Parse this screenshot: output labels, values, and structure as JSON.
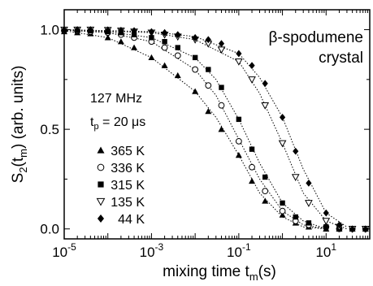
{
  "chart_data": {
    "type": "scatter",
    "xscale": "log",
    "xlim": [
      1e-05,
      100
    ],
    "ylim": [
      -0.05,
      1.1
    ],
    "xlabel": {
      "main": "mixing time t",
      "sub": "m",
      "tail": "(s)"
    },
    "ylabel": {
      "main": "S",
      "sub1": "2",
      "mid": "(t",
      "sub2": "m",
      "tail": ") (arb. units)"
    },
    "x_ticks": [
      {
        "value": 1e-05,
        "base": "10",
        "exp": "-5"
      },
      {
        "value": 0.001,
        "base": "10",
        "exp": "-3"
      },
      {
        "value": 0.1,
        "base": "10",
        "exp": "-1"
      },
      {
        "value": 10,
        "base": "10",
        "exp": "1"
      }
    ],
    "y_ticks": [
      {
        "value": 0.0,
        "label": "0.0"
      },
      {
        "value": 0.5,
        "label": "0.5"
      },
      {
        "value": 1.0,
        "label": "1.0"
      }
    ],
    "annotations": {
      "title_line1": "β-spodumene",
      "title_line2": "crystal",
      "freq": "127 MHz",
      "tp_main": "t",
      "tp_sub": "p",
      "tp_value": " = 20 μs"
    },
    "series": [
      {
        "name": "365 K",
        "marker": "triangle-up",
        "x": [
          1e-05,
          2e-05,
          4e-05,
          0.0001,
          0.0002,
          0.0004,
          0.001,
          0.002,
          0.004,
          0.01,
          0.02,
          0.04,
          0.1,
          0.2,
          0.4,
          1,
          2,
          4,
          10,
          20,
          40,
          80
        ],
        "y": [
          0.99,
          0.985,
          0.98,
          0.96,
          0.94,
          0.91,
          0.86,
          0.82,
          0.77,
          0.69,
          0.59,
          0.5,
          0.37,
          0.24,
          0.14,
          0.07,
          0.03,
          0.01,
          0.0,
          0.0,
          0.0,
          0.0
        ],
        "fit": [
          [
            1e-05,
            0.995
          ],
          [
            0.0001,
            0.96
          ],
          [
            0.001,
            0.86
          ],
          [
            0.01,
            0.69
          ],
          [
            0.03,
            0.56
          ],
          [
            0.1,
            0.37
          ],
          [
            0.3,
            0.18
          ],
          [
            1,
            0.06
          ],
          [
            3,
            0.01
          ],
          [
            10,
            0.0
          ]
        ]
      },
      {
        "name": "336 K",
        "marker": "circle-open",
        "x": [
          1e-05,
          2e-05,
          4e-05,
          0.0001,
          0.0002,
          0.0004,
          0.001,
          0.002,
          0.004,
          0.01,
          0.02,
          0.04,
          0.1,
          0.2,
          0.4,
          1,
          2,
          4,
          10,
          20,
          40,
          80
        ],
        "y": [
          0.995,
          0.993,
          0.99,
          0.985,
          0.975,
          0.96,
          0.94,
          0.91,
          0.87,
          0.8,
          0.72,
          0.62,
          0.44,
          0.31,
          0.19,
          0.09,
          0.04,
          0.02,
          0.01,
          0.0,
          0.0,
          0.0
        ],
        "fit": [
          [
            1e-05,
            0.998
          ],
          [
            0.0001,
            0.985
          ],
          [
            0.001,
            0.94
          ],
          [
            0.01,
            0.8
          ],
          [
            0.03,
            0.67
          ],
          [
            0.1,
            0.45
          ],
          [
            0.3,
            0.25
          ],
          [
            1,
            0.09
          ],
          [
            3,
            0.02
          ],
          [
            10,
            0.0
          ]
        ]
      },
      {
        "name": "315 K",
        "marker": "square-filled",
        "x": [
          1e-05,
          2e-05,
          4e-05,
          0.0001,
          0.0002,
          0.0004,
          0.001,
          0.002,
          0.004,
          0.01,
          0.02,
          0.04,
          0.1,
          0.2,
          0.4,
          1,
          2,
          4,
          10,
          20,
          40,
          80
        ],
        "y": [
          0.998,
          0.996,
          0.995,
          0.99,
          0.985,
          0.975,
          0.96,
          0.94,
          0.91,
          0.86,
          0.8,
          0.71,
          0.55,
          0.4,
          0.26,
          0.13,
          0.06,
          0.03,
          0.01,
          0.0,
          0.0,
          0.0
        ],
        "fit": [
          [
            1e-05,
            0.999
          ],
          [
            0.0001,
            0.99
          ],
          [
            0.001,
            0.96
          ],
          [
            0.01,
            0.86
          ],
          [
            0.03,
            0.75
          ],
          [
            0.1,
            0.55
          ],
          [
            0.3,
            0.33
          ],
          [
            1,
            0.13
          ],
          [
            3,
            0.04
          ],
          [
            10,
            0.0
          ]
        ]
      },
      {
        "name": "135 K",
        "marker": "triangle-down-open",
        "x": [
          1e-05,
          2e-05,
          4e-05,
          0.0001,
          0.0002,
          0.0004,
          0.001,
          0.002,
          0.004,
          0.01,
          0.02,
          0.04,
          0.1,
          0.2,
          0.4,
          1,
          2,
          4,
          10,
          20,
          40,
          80
        ],
        "y": [
          1.0,
          1.0,
          1.0,
          0.998,
          0.995,
          0.99,
          0.985,
          0.975,
          0.965,
          0.95,
          0.93,
          0.9,
          0.84,
          0.75,
          0.62,
          0.43,
          0.26,
          0.13,
          0.04,
          0.01,
          0.0,
          0.0
        ],
        "fit": [
          [
            1e-05,
            1.0
          ],
          [
            0.001,
            0.985
          ],
          [
            0.01,
            0.95
          ],
          [
            0.1,
            0.84
          ],
          [
            0.3,
            0.68
          ],
          [
            1,
            0.43
          ],
          [
            3,
            0.18
          ],
          [
            10,
            0.04
          ],
          [
            30,
            0.0
          ]
        ]
      },
      {
        "name": "44 K",
        "marker": "diamond-filled",
        "x": [
          1e-05,
          2e-05,
          4e-05,
          0.0001,
          0.0002,
          0.0004,
          0.001,
          0.002,
          0.004,
          0.01,
          0.02,
          0.04,
          0.1,
          0.2,
          0.4,
          1,
          2,
          4,
          10,
          20,
          40,
          80
        ],
        "y": [
          1.0,
          1.0,
          1.0,
          0.999,
          0.997,
          0.995,
          0.99,
          0.985,
          0.975,
          0.96,
          0.95,
          0.93,
          0.88,
          0.82,
          0.73,
          0.56,
          0.39,
          0.23,
          0.08,
          0.02,
          0.0,
          0.0
        ],
        "fit": [
          [
            1e-05,
            1.0
          ],
          [
            0.001,
            0.99
          ],
          [
            0.01,
            0.965
          ],
          [
            0.1,
            0.88
          ],
          [
            0.3,
            0.76
          ],
          [
            1,
            0.56
          ],
          [
            3,
            0.3
          ],
          [
            10,
            0.08
          ],
          [
            30,
            0.01
          ]
        ]
      }
    ]
  }
}
